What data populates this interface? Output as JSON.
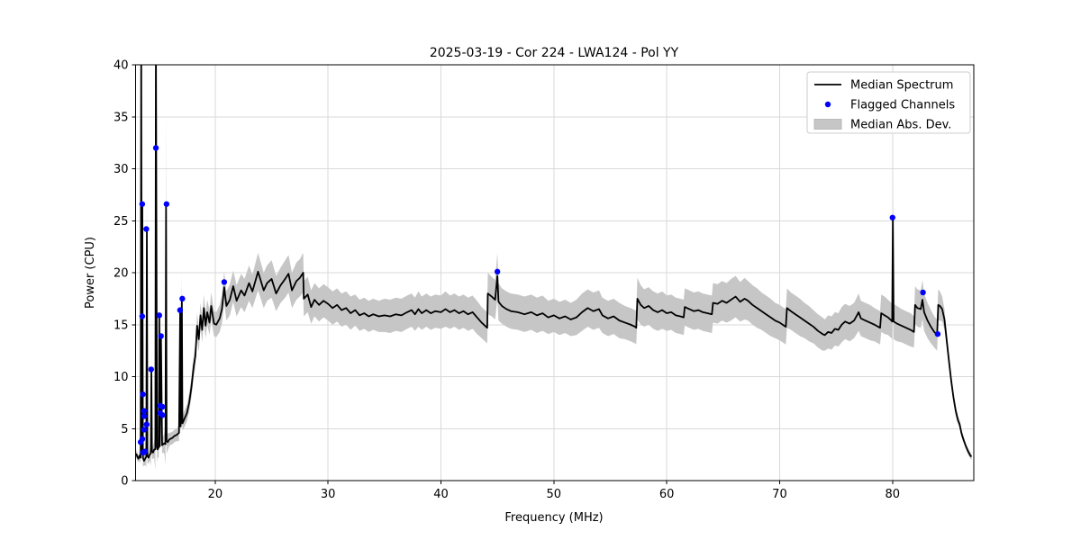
{
  "title": "2025-03-19 - Cor 224 - LWA124 - Pol YY",
  "chart_data": {
    "type": "line",
    "title": "2025-03-19 - Cor 224 - LWA124 - Pol YY",
    "xlabel": "Frequency (MHz)",
    "ylabel": "Power (CPU)",
    "xlim": [
      12.95,
      87.2
    ],
    "ylim": [
      0,
      40
    ],
    "x_ticks": [
      20,
      30,
      40,
      50,
      60,
      70,
      80
    ],
    "y_ticks": [
      0,
      5,
      10,
      15,
      20,
      25,
      30,
      35,
      40
    ],
    "grid": true,
    "legend": [
      "Median Spectrum",
      "Flagged Channels",
      "Median Abs. Dev."
    ],
    "legend_position": "upper right",
    "colors": {
      "median_line": "#000000",
      "flagged": "#0000ff",
      "band": "#c6c6c6",
      "grid": "#d9d9d9",
      "spine": "#000000",
      "background": "#ffffff"
    },
    "series_notes": "median_spectrum rows are [frequency_MHz, power_CPU, median_abs_dev]; flagged_channels rows are [frequency_MHz, power_CPU]",
    "median_spectrum": [
      [
        13.0,
        2.6,
        0.4
      ],
      [
        13.1,
        2.3,
        0.4
      ],
      [
        13.2,
        2.1,
        0.3
      ],
      [
        13.3,
        2.4,
        0.5
      ],
      [
        13.4,
        2.2,
        0.6
      ],
      [
        13.45,
        43,
        6
      ],
      [
        13.5,
        3.0,
        1.2
      ],
      [
        13.55,
        26.6,
        8
      ],
      [
        13.6,
        2.2,
        0.8
      ],
      [
        13.7,
        1.9,
        0.5
      ],
      [
        13.8,
        2.1,
        0.6
      ],
      [
        13.9,
        2.3,
        1.0
      ],
      [
        13.95,
        24.2,
        4
      ],
      [
        14.0,
        2.4,
        0.8
      ],
      [
        14.1,
        2.2,
        0.5
      ],
      [
        14.2,
        2.5,
        0.6
      ],
      [
        14.3,
        2.6,
        1.2
      ],
      [
        14.35,
        10.7,
        2
      ],
      [
        14.4,
        2.8,
        0.7
      ],
      [
        14.5,
        2.7,
        0.6
      ],
      [
        14.6,
        3.0,
        0.8
      ],
      [
        14.7,
        3.0,
        2.0
      ],
      [
        14.75,
        43,
        6
      ],
      [
        14.85,
        3.2,
        1.5
      ],
      [
        14.9,
        3.0,
        0.8
      ],
      [
        15.0,
        3.2,
        1.0
      ],
      [
        15.05,
        15.9,
        3
      ],
      [
        15.1,
        3.3,
        0.8
      ],
      [
        15.2,
        13.9,
        2.5
      ],
      [
        15.3,
        3.4,
        0.8
      ],
      [
        15.4,
        3.5,
        0.8
      ],
      [
        15.5,
        3.6,
        1.0
      ],
      [
        15.6,
        3.5,
        2.0
      ],
      [
        15.65,
        26.6,
        9
      ],
      [
        15.7,
        3.8,
        1.2
      ],
      [
        15.8,
        3.7,
        0.8
      ],
      [
        15.9,
        3.9,
        0.7
      ],
      [
        16.0,
        4.0,
        0.6
      ],
      [
        16.2,
        4.1,
        0.6
      ],
      [
        16.4,
        4.3,
        0.6
      ],
      [
        16.6,
        4.4,
        0.6
      ],
      [
        16.8,
        4.6,
        0.8
      ],
      [
        16.9,
        16.4,
        2.2
      ],
      [
        16.95,
        5.2,
        0.6
      ],
      [
        17.05,
        17.5,
        2.5
      ],
      [
        17.1,
        5.5,
        0.7
      ],
      [
        17.3,
        6.0,
        0.8
      ],
      [
        17.5,
        6.5,
        0.8
      ],
      [
        17.7,
        7.5,
        0.9
      ],
      [
        17.9,
        9.0,
        1.0
      ],
      [
        18.1,
        11.0,
        1.1
      ],
      [
        18.25,
        12.0,
        1.1
      ],
      [
        18.4,
        14.9,
        1.2
      ],
      [
        18.55,
        13.6,
        1.2
      ],
      [
        18.7,
        15.9,
        1.2
      ],
      [
        18.85,
        14.5,
        1.2
      ],
      [
        19.0,
        16.6,
        1.3
      ],
      [
        19.15,
        14.9,
        1.2
      ],
      [
        19.3,
        16.2,
        1.2
      ],
      [
        19.5,
        15.2,
        1.2
      ],
      [
        19.65,
        16.8,
        1.3
      ],
      [
        19.9,
        15.1,
        1.2
      ],
      [
        20.1,
        15.0,
        1.2
      ],
      [
        20.4,
        15.6,
        1.3
      ],
      [
        20.6,
        16.5,
        1.4
      ],
      [
        20.8,
        18.6,
        1.5
      ],
      [
        21.0,
        16.8,
        1.4
      ],
      [
        21.3,
        17.4,
        1.5
      ],
      [
        21.6,
        18.7,
        1.5
      ],
      [
        21.9,
        17.3,
        1.5
      ],
      [
        22.3,
        18.3,
        1.6
      ],
      [
        22.6,
        17.8,
        1.6
      ],
      [
        23.0,
        19.0,
        1.7
      ],
      [
        23.3,
        18.2,
        1.6
      ],
      [
        23.8,
        20.1,
        1.8
      ],
      [
        24.3,
        18.3,
        1.7
      ],
      [
        24.6,
        19.0,
        1.7
      ],
      [
        25.0,
        19.4,
        1.8
      ],
      [
        25.4,
        18.0,
        1.7
      ],
      [
        25.8,
        18.8,
        1.7
      ],
      [
        26.2,
        19.4,
        1.8
      ],
      [
        26.5,
        19.9,
        1.8
      ],
      [
        26.8,
        18.3,
        1.7
      ],
      [
        27.2,
        19.2,
        1.8
      ],
      [
        27.5,
        19.5,
        1.8
      ],
      [
        27.8,
        20.0,
        1.9
      ],
      [
        27.85,
        17.5,
        1.7
      ],
      [
        28.2,
        17.9,
        1.7
      ],
      [
        28.5,
        16.7,
        1.6
      ],
      [
        28.8,
        17.4,
        1.6
      ],
      [
        29.2,
        16.9,
        1.6
      ],
      [
        29.6,
        17.3,
        1.6
      ],
      [
        30.0,
        17.0,
        1.6
      ],
      [
        30.4,
        16.6,
        1.6
      ],
      [
        30.8,
        16.9,
        1.6
      ],
      [
        31.2,
        16.4,
        1.6
      ],
      [
        31.6,
        16.6,
        1.6
      ],
      [
        32.0,
        16.1,
        1.6
      ],
      [
        32.4,
        16.4,
        1.5
      ],
      [
        32.8,
        15.9,
        1.5
      ],
      [
        33.2,
        16.1,
        1.5
      ],
      [
        33.6,
        15.8,
        1.5
      ],
      [
        34.0,
        16.0,
        1.5
      ],
      [
        34.5,
        15.8,
        1.5
      ],
      [
        35.0,
        15.9,
        1.6
      ],
      [
        35.5,
        15.8,
        1.6
      ],
      [
        36.0,
        16.0,
        1.6
      ],
      [
        36.5,
        15.9,
        1.6
      ],
      [
        37.0,
        16.2,
        1.6
      ],
      [
        37.4,
        16.4,
        1.6
      ],
      [
        37.7,
        16.0,
        1.6
      ],
      [
        38.0,
        16.5,
        1.7
      ],
      [
        38.3,
        16.1,
        1.6
      ],
      [
        38.7,
        16.4,
        1.6
      ],
      [
        39.1,
        16.1,
        1.6
      ],
      [
        39.5,
        16.3,
        1.6
      ],
      [
        40.0,
        16.2,
        1.6
      ],
      [
        40.4,
        16.5,
        1.7
      ],
      [
        40.8,
        16.2,
        1.6
      ],
      [
        41.2,
        16.4,
        1.6
      ],
      [
        41.6,
        16.1,
        1.6
      ],
      [
        42.0,
        16.3,
        1.6
      ],
      [
        42.4,
        16.0,
        1.6
      ],
      [
        42.8,
        16.2,
        1.6
      ],
      [
        43.2,
        15.7,
        1.6
      ],
      [
        43.6,
        15.2,
        1.5
      ],
      [
        44.0,
        14.8,
        1.5
      ],
      [
        44.1,
        14.7,
        1.5
      ],
      [
        44.15,
        18.0,
        2.0
      ],
      [
        44.5,
        17.7,
        1.9
      ],
      [
        44.8,
        17.4,
        1.9
      ],
      [
        45.0,
        19.7,
        2.2
      ],
      [
        45.1,
        17.2,
        1.8
      ],
      [
        45.4,
        16.8,
        1.7
      ],
      [
        45.8,
        16.5,
        1.7
      ],
      [
        46.2,
        16.3,
        1.7
      ],
      [
        46.8,
        16.2,
        1.7
      ],
      [
        47.4,
        16.0,
        1.7
      ],
      [
        48.0,
        16.2,
        1.7
      ],
      [
        48.5,
        15.9,
        1.7
      ],
      [
        49.0,
        16.1,
        1.7
      ],
      [
        49.5,
        15.7,
        1.6
      ],
      [
        50.0,
        15.9,
        1.6
      ],
      [
        50.5,
        15.6,
        1.6
      ],
      [
        51.0,
        15.8,
        1.6
      ],
      [
        51.5,
        15.5,
        1.6
      ],
      [
        52.0,
        15.7,
        1.7
      ],
      [
        52.5,
        16.2,
        1.8
      ],
      [
        53.0,
        16.6,
        1.8
      ],
      [
        53.5,
        16.3,
        1.8
      ],
      [
        54.0,
        16.5,
        1.8
      ],
      [
        54.3,
        15.9,
        1.7
      ],
      [
        54.8,
        15.6,
        1.7
      ],
      [
        55.3,
        15.8,
        1.7
      ],
      [
        55.8,
        15.4,
        1.7
      ],
      [
        56.3,
        15.2,
        1.6
      ],
      [
        56.8,
        15.0,
        1.6
      ],
      [
        57.2,
        14.8,
        1.6
      ],
      [
        57.3,
        14.7,
        1.6
      ],
      [
        57.4,
        17.5,
        2.0
      ],
      [
        57.7,
        16.9,
        1.9
      ],
      [
        58.0,
        16.6,
        1.8
      ],
      [
        58.4,
        16.8,
        1.8
      ],
      [
        58.8,
        16.4,
        1.8
      ],
      [
        59.2,
        16.2,
        1.8
      ],
      [
        59.6,
        16.4,
        1.8
      ],
      [
        60.0,
        16.1,
        1.7
      ],
      [
        60.4,
        16.2,
        1.7
      ],
      [
        60.8,
        15.9,
        1.7
      ],
      [
        61.2,
        15.8,
        1.7
      ],
      [
        61.5,
        15.7,
        1.7
      ],
      [
        61.6,
        16.7,
        1.8
      ],
      [
        62.0,
        16.5,
        1.8
      ],
      [
        62.4,
        16.3,
        1.8
      ],
      [
        62.8,
        16.4,
        1.8
      ],
      [
        63.2,
        16.2,
        1.8
      ],
      [
        63.6,
        16.1,
        1.8
      ],
      [
        64.0,
        16.0,
        1.8
      ],
      [
        64.1,
        17.1,
        1.9
      ],
      [
        64.5,
        17.0,
        1.9
      ],
      [
        64.9,
        17.3,
        1.9
      ],
      [
        65.3,
        17.1,
        1.9
      ],
      [
        65.7,
        17.4,
        2.0
      ],
      [
        66.1,
        17.7,
        2.0
      ],
      [
        66.5,
        17.2,
        1.9
      ],
      [
        66.9,
        17.5,
        2.0
      ],
      [
        67.2,
        17.3,
        1.9
      ],
      [
        67.6,
        16.9,
        1.9
      ],
      [
        68.0,
        16.6,
        1.9
      ],
      [
        68.4,
        16.3,
        1.8
      ],
      [
        68.8,
        16.0,
        1.8
      ],
      [
        69.2,
        15.7,
        1.8
      ],
      [
        69.6,
        15.4,
        1.7
      ],
      [
        70.0,
        15.2,
        1.7
      ],
      [
        70.4,
        14.9,
        1.7
      ],
      [
        70.55,
        14.8,
        1.7
      ],
      [
        70.65,
        16.6,
        1.9
      ],
      [
        71.0,
        16.3,
        1.8
      ],
      [
        71.4,
        16.0,
        1.8
      ],
      [
        71.8,
        15.7,
        1.8
      ],
      [
        72.2,
        15.4,
        1.7
      ],
      [
        72.6,
        15.1,
        1.7
      ],
      [
        73.0,
        14.8,
        1.6
      ],
      [
        73.4,
        14.4,
        1.6
      ],
      [
        73.8,
        14.1,
        1.6
      ],
      [
        74.0,
        14.0,
        1.5
      ],
      [
        74.3,
        14.3,
        1.6
      ],
      [
        74.6,
        14.2,
        1.6
      ],
      [
        74.9,
        14.6,
        1.6
      ],
      [
        75.2,
        14.5,
        1.6
      ],
      [
        75.5,
        15.0,
        1.7
      ],
      [
        75.8,
        15.3,
        1.7
      ],
      [
        76.2,
        15.1,
        1.7
      ],
      [
        76.6,
        15.4,
        1.7
      ],
      [
        77.0,
        16.2,
        1.8
      ],
      [
        77.2,
        15.6,
        1.7
      ],
      [
        77.6,
        15.4,
        1.7
      ],
      [
        78.0,
        15.2,
        1.7
      ],
      [
        78.4,
        15.0,
        1.6
      ],
      [
        78.9,
        14.7,
        1.6
      ],
      [
        79.0,
        16.1,
        1.8
      ],
      [
        79.3,
        15.9,
        1.8
      ],
      [
        79.6,
        15.7,
        1.7
      ],
      [
        79.9,
        15.4,
        1.7
      ],
      [
        79.97,
        15.3,
        1.7
      ],
      [
        80.03,
        25.3,
        3.0
      ],
      [
        80.1,
        15.3,
        1.7
      ],
      [
        80.4,
        15.1,
        1.7
      ],
      [
        80.8,
        14.9,
        1.6
      ],
      [
        81.2,
        14.7,
        1.6
      ],
      [
        81.6,
        14.5,
        1.6
      ],
      [
        81.9,
        14.3,
        1.5
      ],
      [
        82.0,
        16.9,
        1.8
      ],
      [
        82.2,
        16.6,
        1.8
      ],
      [
        82.5,
        16.5,
        1.8
      ],
      [
        82.65,
        17.4,
        1.9
      ],
      [
        82.8,
        16.2,
        1.8
      ],
      [
        83.1,
        15.4,
        1.7
      ],
      [
        83.4,
        14.8,
        1.6
      ],
      [
        83.7,
        14.3,
        1.5
      ],
      [
        83.95,
        14.0,
        1.5
      ],
      [
        84.05,
        16.9,
        1.5
      ],
      [
        84.2,
        16.8,
        1.4
      ],
      [
        84.4,
        16.5,
        1.2
      ],
      [
        84.6,
        15.5,
        1.0
      ],
      [
        84.8,
        13.5,
        0.8
      ],
      [
        85.0,
        11.5,
        0.7
      ],
      [
        85.2,
        9.6,
        0.6
      ],
      [
        85.4,
        8.0,
        0.5
      ],
      [
        85.6,
        6.7,
        0.5
      ],
      [
        85.8,
        5.8,
        0.4
      ],
      [
        85.95,
        5.4,
        0.4
      ],
      [
        86.1,
        4.6,
        0.4
      ],
      [
        86.3,
        3.9,
        0.3
      ],
      [
        86.5,
        3.3,
        0.3
      ],
      [
        86.7,
        2.8,
        0.3
      ],
      [
        86.9,
        2.4,
        0.3
      ],
      [
        87.0,
        2.3,
        0.3
      ]
    ],
    "flagged_channels": [
      [
        13.4,
        3.7
      ],
      [
        13.54,
        26.6
      ],
      [
        13.54,
        15.8
      ],
      [
        13.55,
        4.0
      ],
      [
        13.6,
        8.3
      ],
      [
        13.62,
        2.7
      ],
      [
        13.7,
        6.7
      ],
      [
        13.7,
        6.2
      ],
      [
        13.7,
        4.9
      ],
      [
        13.78,
        2.8
      ],
      [
        13.9,
        24.2
      ],
      [
        13.93,
        5.4
      ],
      [
        14.33,
        10.7
      ],
      [
        14.75,
        32.0
      ],
      [
        15.05,
        15.9
      ],
      [
        15.13,
        7.2
      ],
      [
        15.13,
        6.5
      ],
      [
        15.2,
        13.9
      ],
      [
        15.33,
        7.1
      ],
      [
        15.33,
        6.3
      ],
      [
        15.69,
        26.6
      ],
      [
        16.89,
        16.4
      ],
      [
        17.09,
        17.5
      ],
      [
        20.8,
        19.1
      ],
      [
        45.0,
        20.1
      ],
      [
        80.0,
        25.3
      ],
      [
        82.7,
        18.1
      ],
      [
        84.0,
        14.1
      ]
    ]
  }
}
